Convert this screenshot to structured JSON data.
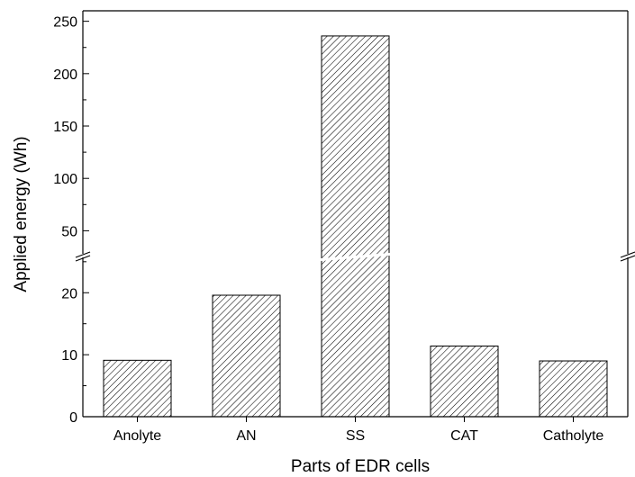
{
  "chart_data": {
    "type": "bar",
    "title": "",
    "xlabel": "Parts of EDR cells",
    "ylabel": "Applied energy (Wh)",
    "categories": [
      "Anolyte",
      "AN",
      "SS",
      "CAT",
      "Catholyte"
    ],
    "values": [
      9.1,
      19.6,
      236,
      11.4,
      9.0
    ],
    "y_axis_break": {
      "lower_segment": {
        "ylim": [
          0,
          25.7
        ],
        "ticks": [
          0,
          10,
          20
        ]
      },
      "upper_segment": {
        "ylim": [
          28,
          260
        ],
        "ticks": [
          50,
          100,
          150,
          200,
          250
        ]
      }
    },
    "bar_fill": "hatched",
    "grid": false,
    "legend": "none"
  },
  "colors": {
    "bar_stroke": "#000000",
    "hatch": "#000000",
    "background": "#ffffff"
  }
}
